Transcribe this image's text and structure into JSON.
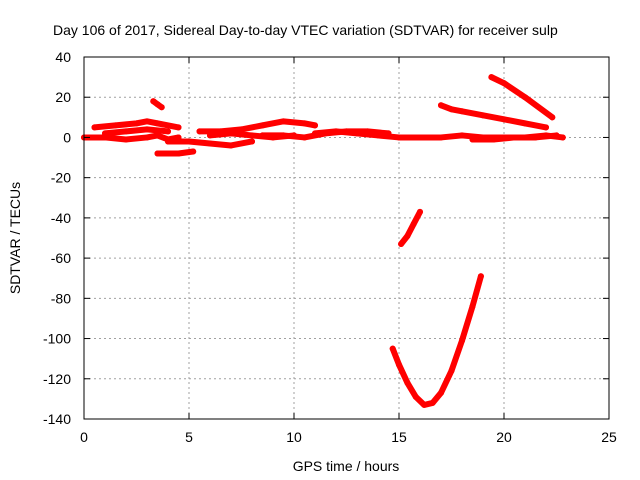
{
  "chart_data": {
    "type": "scatter",
    "title": "Day 106 of 2017, Sidereal Day-to-day VTEC variation (SDTVAR) for receiver sulp",
    "xlabel": "GPS time / hours",
    "ylabel": "SDTVAR / TECUs",
    "xlim": [
      0,
      25
    ],
    "ylim": [
      -140,
      40
    ],
    "xticks": [
      "0",
      "5",
      "10",
      "15",
      "20",
      "25"
    ],
    "yticks": [
      "40",
      "20",
      "0",
      "-20",
      "-40",
      "-60",
      "-80",
      "-100",
      "-120",
      "-140"
    ],
    "grid": true,
    "marker_color": "#ff0000",
    "series": [
      {
        "x": [
          0,
          1,
          2,
          3,
          3.5,
          4,
          4.5
        ],
        "y": [
          0,
          0,
          -1,
          0,
          1,
          -1,
          0
        ]
      },
      {
        "x": [
          0.5,
          1.5,
          2.5,
          3,
          3.5,
          4.5
        ],
        "y": [
          5,
          6,
          7,
          8,
          7,
          5
        ]
      },
      {
        "x": [
          1,
          2,
          3,
          4
        ],
        "y": [
          2,
          3,
          4,
          3
        ]
      },
      {
        "x": [
          3.3,
          3.5,
          3.7
        ],
        "y": [
          18,
          16.5,
          15
        ]
      },
      {
        "x": [
          3.5,
          4,
          4.5,
          5.2
        ],
        "y": [
          -8,
          -8,
          -8,
          -7
        ]
      },
      {
        "x": [
          4,
          5,
          6,
          7,
          8
        ],
        "y": [
          -2,
          -2,
          -3,
          -4,
          -2
        ]
      },
      {
        "x": [
          5.5,
          6.5,
          7.5,
          8.5,
          9.5,
          10.5,
          11
        ],
        "y": [
          3,
          3,
          4,
          6,
          8,
          7,
          6
        ]
      },
      {
        "x": [
          6,
          7,
          8,
          9,
          10
        ],
        "y": [
          1,
          2,
          1,
          0,
          1
        ]
      },
      {
        "x": [
          8.5,
          9.5,
          10.5,
          11.5,
          12.5,
          13.5,
          14.5
        ],
        "y": [
          1,
          1,
          0,
          2,
          3,
          3,
          2
        ]
      },
      {
        "x": [
          11,
          12,
          13,
          14,
          15,
          16,
          17,
          18,
          19,
          20,
          21,
          22,
          22.8
        ],
        "y": [
          2,
          3,
          2,
          1,
          0,
          0,
          0,
          1,
          0,
          0,
          0,
          1,
          0
        ]
      },
      {
        "x": [
          17,
          17.5,
          18,
          19,
          20,
          21,
          22
        ],
        "y": [
          16,
          14,
          13,
          11,
          9,
          7,
          5
        ]
      },
      {
        "x": [
          19.4,
          20,
          21,
          22.3
        ],
        "y": [
          30,
          27,
          20,
          10
        ]
      },
      {
        "x": [
          18.5,
          19.5,
          20.5,
          21.5,
          22.5
        ],
        "y": [
          -1,
          -1,
          0,
          0,
          1
        ]
      },
      {
        "x": [
          15.1,
          15.4,
          15.7,
          16.0
        ],
        "y": [
          -53,
          -49,
          -43,
          -37
        ]
      },
      {
        "x": [
          14.7,
          15.0,
          15.4,
          15.8,
          16.2,
          16.6,
          17.0,
          17.5,
          18.0,
          18.5,
          18.9
        ],
        "y": [
          -105,
          -113,
          -122,
          -129,
          -133,
          -132,
          -127,
          -116,
          -101,
          -84,
          -69
        ]
      }
    ]
  }
}
